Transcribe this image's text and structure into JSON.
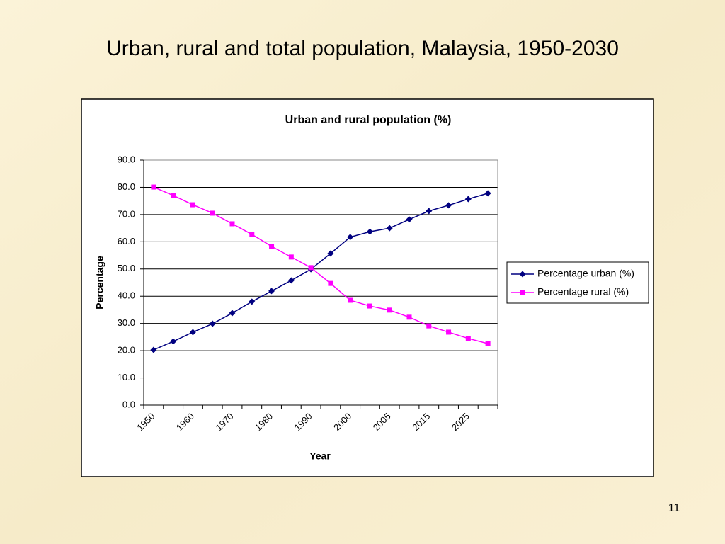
{
  "slide_title": "Urban, rural and total population, Malaysia, 1950-2030",
  "page_number": "11",
  "chart_data": {
    "type": "line",
    "title": "Urban and rural population (%)",
    "x_label": "Year",
    "y_label": "Percentage",
    "categories": [
      "1950",
      null,
      "1960",
      null,
      "1970",
      null,
      "1980",
      null,
      "1990",
      null,
      "2000",
      null,
      "2005",
      null,
      "2015",
      null,
      "2025",
      null
    ],
    "series": [
      {
        "name": "Percentage urban (%)",
        "color": "#000080",
        "marker": "diamond",
        "values": [
          20.3,
          23.4,
          26.8,
          29.9,
          33.8,
          38.0,
          41.9,
          45.8,
          49.9,
          55.7,
          61.7,
          63.7,
          65.0,
          68.2,
          71.3,
          73.4,
          75.7,
          77.8
        ]
      },
      {
        "name": "Percentage rural (%)",
        "color": "#ff00ff",
        "marker": "square",
        "values": [
          80.1,
          77.0,
          73.6,
          70.5,
          66.6,
          62.7,
          58.3,
          54.4,
          50.5,
          44.7,
          38.5,
          36.4,
          34.9,
          32.3,
          29.1,
          26.8,
          24.5,
          22.6
        ]
      }
    ],
    "ylim": [
      0,
      90
    ],
    "yticks": [
      {
        "value": 0,
        "label": "0.0"
      },
      {
        "value": 10,
        "label": "10.0"
      },
      {
        "value": 20,
        "label": "20.0"
      },
      {
        "value": 30,
        "label": "30.0"
      },
      {
        "value": 40,
        "label": "40.0"
      },
      {
        "value": 50,
        "label": "50.0"
      },
      {
        "value": 60,
        "label": "60.0"
      },
      {
        "value": 70,
        "label": "70.0"
      },
      {
        "value": 80,
        "label": "80.0"
      },
      {
        "value": 90,
        "label": "90.0"
      }
    ],
    "grid": true,
    "legend": "right"
  }
}
